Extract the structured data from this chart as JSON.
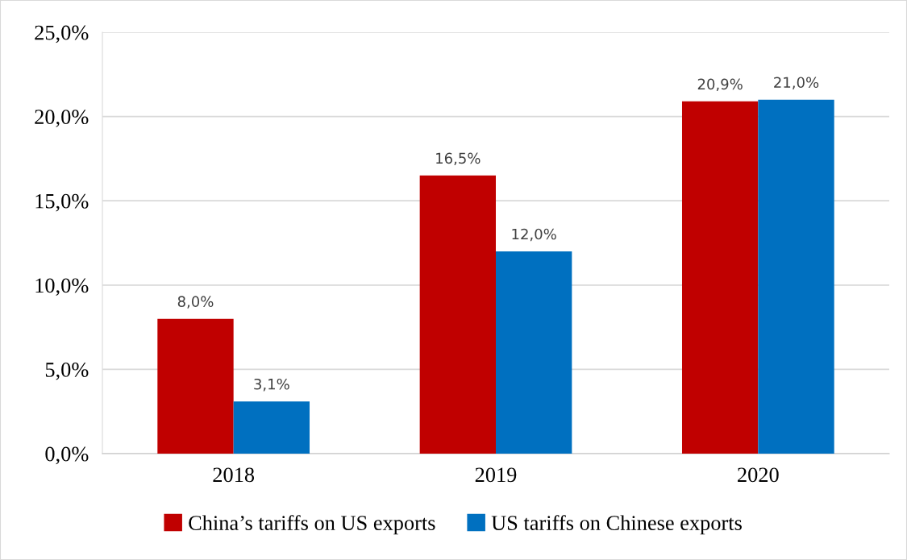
{
  "chart_data": {
    "type": "bar",
    "categories": [
      "2018",
      "2019",
      "2020"
    ],
    "series": [
      {
        "name": "China’s tariffs on US exports",
        "color": "#c00000",
        "values": [
          8.0,
          16.5,
          20.9
        ],
        "value_labels": [
          "8,0%",
          "16,5%",
          "20,9%"
        ]
      },
      {
        "name": "US tariffs on Chinese exports",
        "color": "#0070c0",
        "values": [
          3.1,
          12.0,
          21.0
        ],
        "value_labels": [
          "3,1%",
          "12,0%",
          "21,0%"
        ]
      }
    ],
    "ylim": [
      0,
      25
    ],
    "yticks": [
      {
        "value": 0,
        "label": "0,0%"
      },
      {
        "value": 5,
        "label": "5,0%"
      },
      {
        "value": 10,
        "label": "10,0%"
      },
      {
        "value": 15,
        "label": "15,0%"
      },
      {
        "value": 20,
        "label": "20,0%"
      },
      {
        "value": 25,
        "label": "25,0%"
      }
    ],
    "grid": "y",
    "legend": "bottom"
  }
}
